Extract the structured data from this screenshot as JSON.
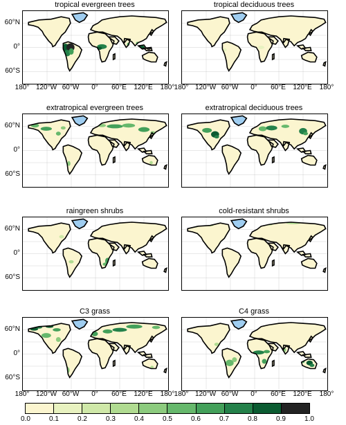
{
  "panels": [
    {
      "title": "tropical evergreen trees"
    },
    {
      "title": "tropical deciduous trees"
    },
    {
      "title": "extratropical evergreen trees"
    },
    {
      "title": "extratropical deciduous trees"
    },
    {
      "title": "raingreen shrubs"
    },
    {
      "title": "cold-resistant shrubs"
    },
    {
      "title": "C3 grass"
    },
    {
      "title": "C4 grass"
    }
  ],
  "lat_labels": [
    "60°N",
    "0°",
    "60°S"
  ],
  "lon_labels": [
    "180°",
    "120°W",
    "60°W",
    "0°",
    "60°E",
    "120°E",
    "180°"
  ],
  "colorbar": {
    "ticks": [
      "0.0",
      "0.1",
      "0.2",
      "0.3",
      "0.4",
      "0.5",
      "0.6",
      "0.7",
      "0.8",
      "0.9",
      "1.0"
    ],
    "colors": [
      "#fbf5cf",
      "#e8f2c0",
      "#cfe8a8",
      "#b0db91",
      "#8ccb7e",
      "#66b86c",
      "#43a05a",
      "#24814a",
      "#0b5b31",
      "#232323"
    ]
  },
  "colors": {
    "land": "#fbf5cf",
    "ice": "#9fcdf0",
    "coast": "#000000",
    "grid": "#bdbdbd"
  }
}
